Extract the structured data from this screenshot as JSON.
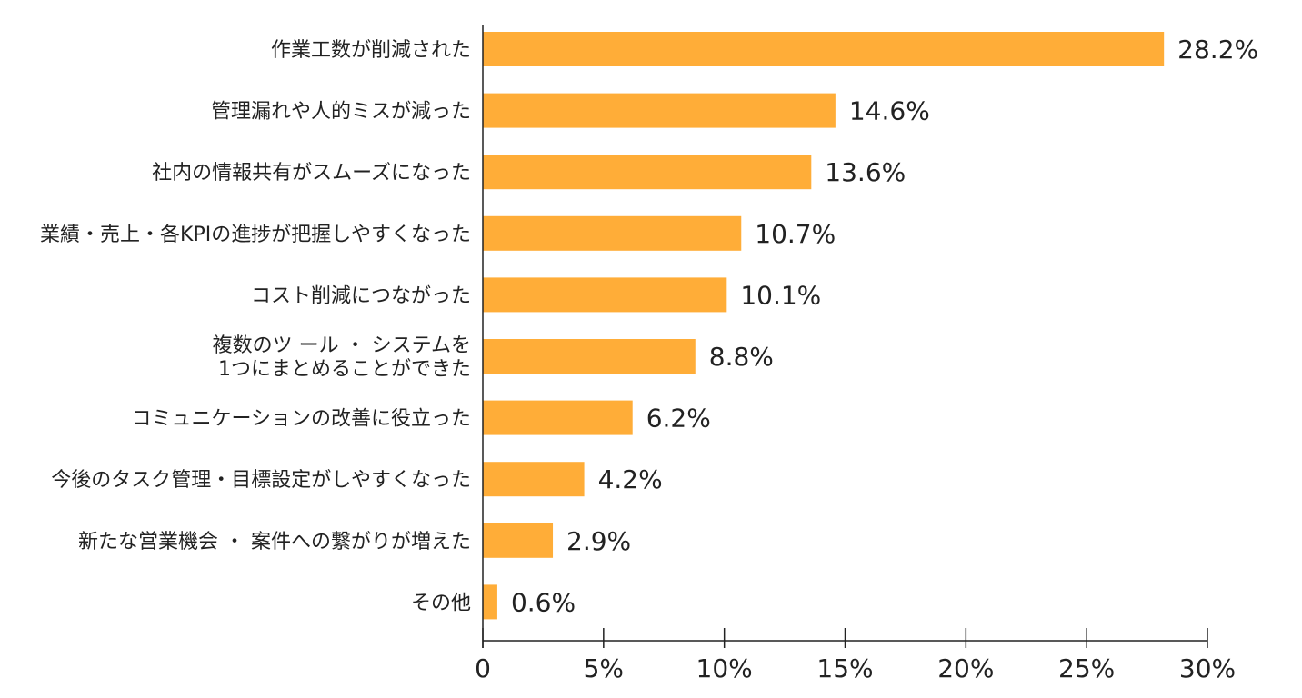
{
  "chart_data": {
    "type": "bar",
    "orientation": "horizontal",
    "categories": [
      "作業工数が削減された",
      "管理漏れや人的ミスが減った",
      "社内の情報共有がスムーズになった",
      "業績・売上・各KPIの進捗が把握しやすくなった",
      "コスト削減につながった",
      "複数のツ ール ・ システムを\n1つにまとめることができた",
      "コミュニケーションの改善に役立った",
      "今後のタスク管理・目標設定がしやすくなった",
      "新たな営業機会 ・ 案件への繋がりが増えた",
      "その他"
    ],
    "values": [
      28.2,
      14.6,
      13.6,
      10.7,
      10.1,
      8.8,
      6.2,
      4.2,
      2.9,
      0.6
    ],
    "value_labels": [
      "28.2%",
      "14.6%",
      "13.6%",
      "10.7%",
      "10.1%",
      "8.8%",
      "6.2%",
      "4.2%",
      "2.9%",
      "0.6%"
    ],
    "xlim": [
      0,
      30
    ],
    "xticks": [
      0,
      5,
      10,
      15,
      20,
      25,
      30
    ],
    "xtick_labels": [
      "0",
      "5%",
      "10%",
      "15%",
      "20%",
      "25%",
      "30%"
    ],
    "title": "",
    "xlabel": "",
    "ylabel": "",
    "grid": false,
    "legend": "none",
    "bar_color": "#FFAD38",
    "axis_color": "#222222"
  }
}
